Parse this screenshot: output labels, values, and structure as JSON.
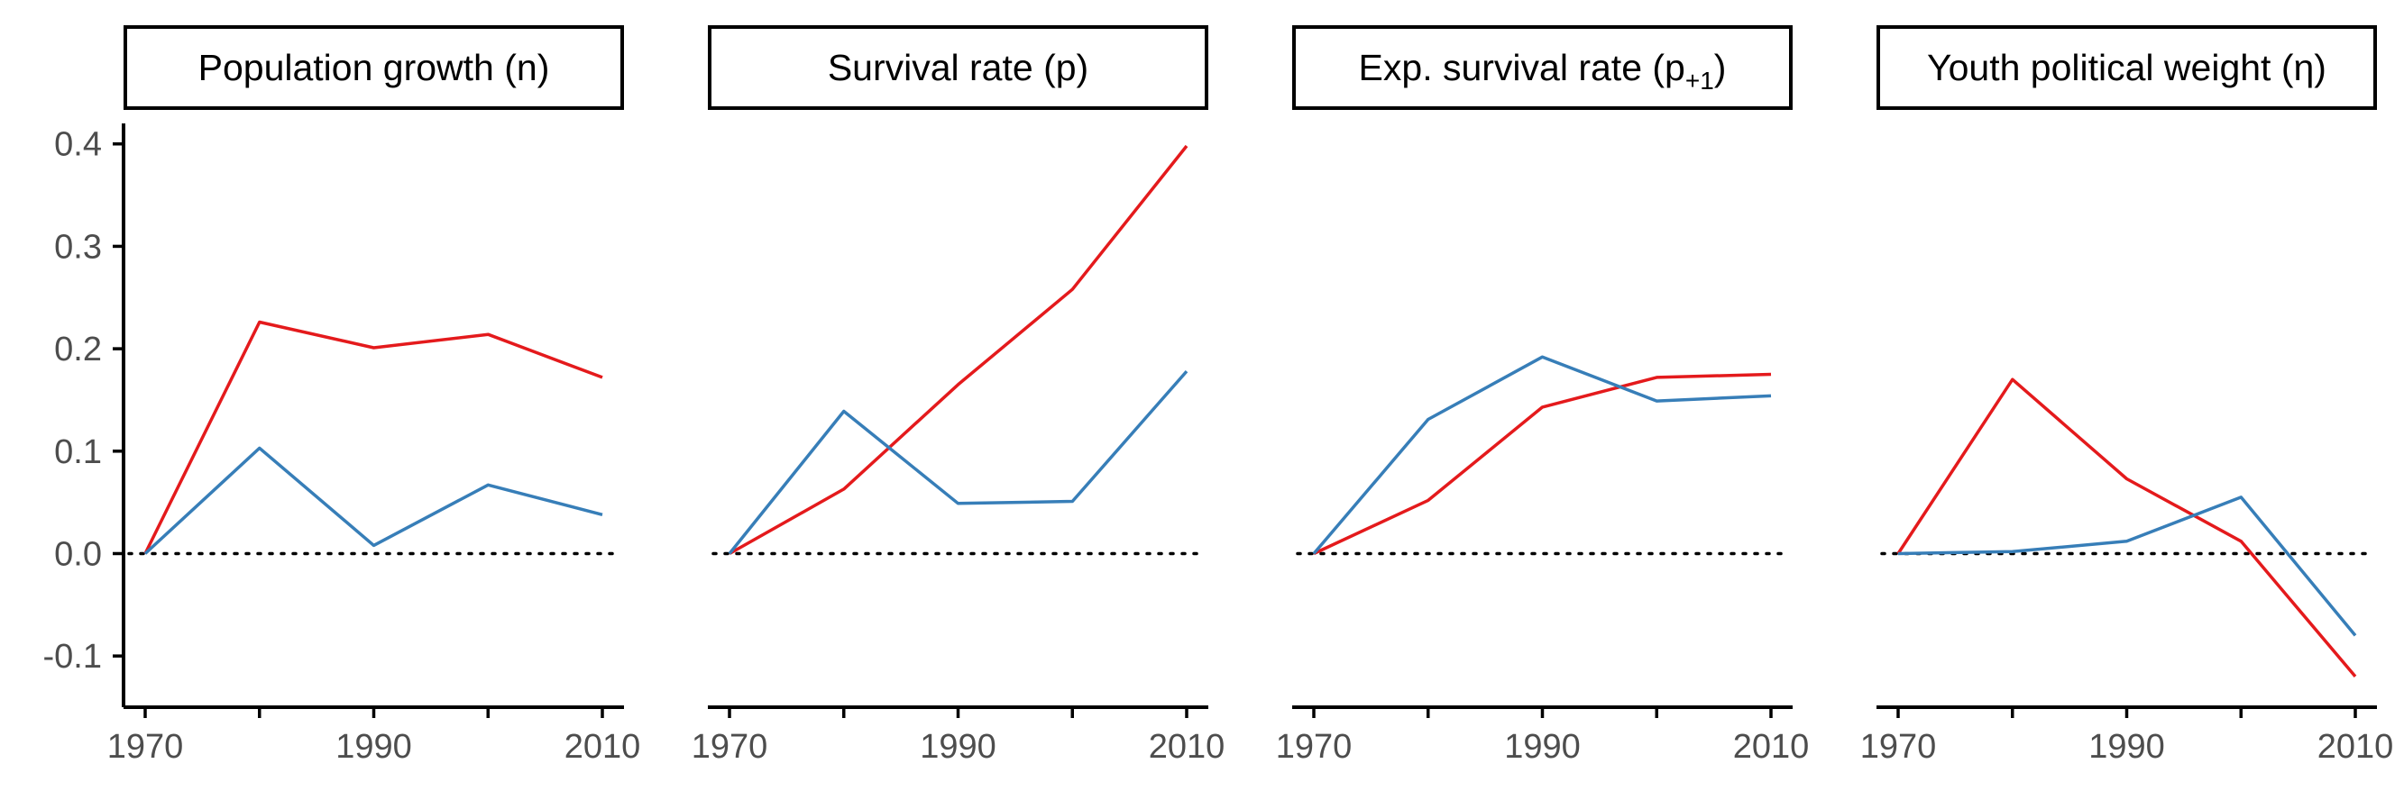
{
  "chart_data": [
    {
      "type": "line",
      "title": "Population growth (n)",
      "title_parts": [
        "Population growth (n)"
      ],
      "x": [
        1970,
        1980,
        1990,
        2000,
        2010
      ],
      "x_ticks": [
        1970,
        1990,
        2010
      ],
      "y_ticks": [
        -0.1,
        0.0,
        0.1,
        0.2,
        0.3,
        0.4
      ],
      "y_tick_labels": [
        "-0.1",
        "0.0",
        "0.1",
        "0.2",
        "0.3",
        "0.4"
      ],
      "ylim": [
        -0.15,
        0.42
      ],
      "reference_line": 0,
      "series": [
        {
          "color": "#e41a1c",
          "values": [
            0.0,
            0.226,
            0.201,
            0.214,
            0.172
          ]
        },
        {
          "color": "#377eb8",
          "values": [
            0.0,
            0.103,
            0.008,
            0.067,
            0.038
          ]
        }
      ]
    },
    {
      "type": "line",
      "title": "Survival rate (p)",
      "title_parts": [
        "Survival rate (p)"
      ],
      "x": [
        1970,
        1980,
        1990,
        2000,
        2010
      ],
      "x_ticks": [
        1970,
        1990,
        2010
      ],
      "ylim": [
        -0.15,
        0.42
      ],
      "reference_line": 0,
      "series": [
        {
          "color": "#e41a1c",
          "values": [
            0.0,
            0.063,
            0.165,
            0.258,
            0.398
          ]
        },
        {
          "color": "#377eb8",
          "values": [
            0.0,
            0.139,
            0.049,
            0.051,
            0.178
          ]
        }
      ]
    },
    {
      "type": "line",
      "title": "Exp. survival rate (p+1)",
      "title_parts": [
        "Exp. survival rate (p",
        "+1",
        ")"
      ],
      "x": [
        1970,
        1980,
        1990,
        2000,
        2010
      ],
      "x_ticks": [
        1970,
        1990,
        2010
      ],
      "ylim": [
        -0.15,
        0.42
      ],
      "reference_line": 0,
      "series": [
        {
          "color": "#e41a1c",
          "values": [
            0.0,
            0.052,
            0.143,
            0.172,
            0.175
          ]
        },
        {
          "color": "#377eb8",
          "values": [
            0.0,
            0.131,
            0.192,
            0.149,
            0.154
          ]
        }
      ]
    },
    {
      "type": "line",
      "title": "Youth political weight (η)",
      "title_parts": [
        "Youth political weight (η)"
      ],
      "x": [
        1970,
        1980,
        1990,
        2000,
        2010
      ],
      "x_ticks": [
        1970,
        1990,
        2010
      ],
      "ylim": [
        -0.15,
        0.42
      ],
      "reference_line": 0,
      "series": [
        {
          "color": "#e41a1c",
          "values": [
            0.0,
            0.17,
            0.073,
            0.012,
            -0.12
          ]
        },
        {
          "color": "#377eb8",
          "values": [
            0.0,
            0.002,
            0.012,
            0.055,
            -0.08
          ]
        }
      ]
    }
  ]
}
